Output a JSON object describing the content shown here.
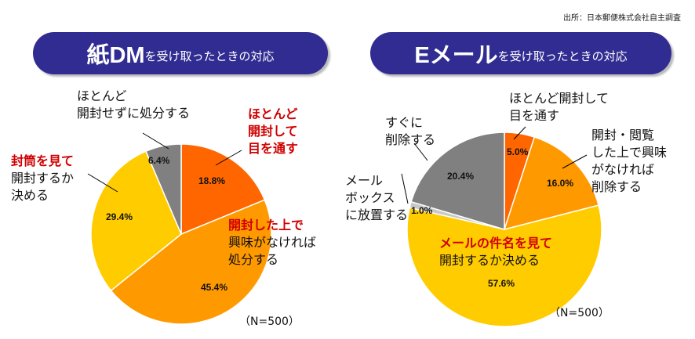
{
  "source": "出所：日本郵便株式会社自主調査",
  "chart_data": [
    {
      "type": "pie",
      "title_big": "紙DM",
      "title_small": "を受け取ったときの対応",
      "n_label": "（N=500）",
      "start": "12 o'clock",
      "direction": "clockwise",
      "slices": [
        {
          "name": "ほとんど開封して目を通す",
          "lines": [
            "ほとんど",
            "開封して",
            "目を通す"
          ],
          "value": 18.8,
          "label": "18.8%",
          "color": "#ff6600"
        },
        {
          "name": "開封した上で興味がなければ処分する",
          "lines_red": [
            "開封した上で"
          ],
          "lines": [
            "興味がなければ",
            "処分する"
          ],
          "value": 45.4,
          "label": "45.4%",
          "color": "#ff9900"
        },
        {
          "name": "封筒を見て開封するか決める",
          "lines_red": [
            "封筒を見て"
          ],
          "lines": [
            "開封するか",
            "決める"
          ],
          "value": 29.4,
          "label": "29.4%",
          "color": "#ffcc00"
        },
        {
          "name": "ほとんど開封せずに処分する",
          "lines": [
            "ほとんど",
            "開封せずに処分する"
          ],
          "value": 6.4,
          "label": "6.4%",
          "color": "#808080"
        }
      ]
    },
    {
      "type": "pie",
      "title_big": "Eメール",
      "title_small": "を受け取ったときの対応",
      "n_label": "（N=500）",
      "start": "12 o'clock",
      "direction": "clockwise",
      "slices": [
        {
          "name": "ほとんど開封して目を通す",
          "lines": [
            "ほとんど開封して",
            "目を通す"
          ],
          "value": 5.0,
          "label": "5.0%",
          "color": "#ff6600"
        },
        {
          "name": "開封・閲覧した上で興味がなければ削除する",
          "lines": [
            "開封・閲覧",
            "した上で興味",
            "がなければ",
            "削除する"
          ],
          "value": 16.0,
          "label": "16.0%",
          "color": "#ff9900"
        },
        {
          "name": "メールの件名を見て開封するか決める",
          "lines_red": [
            "メールの件名を見て"
          ],
          "lines": [
            "開封するか決める"
          ],
          "value": 57.6,
          "label": "57.6%",
          "color": "#ffcc00"
        },
        {
          "name": "メールボックスに放置する",
          "lines": [
            "メール",
            "ボックス",
            "に放置する"
          ],
          "value": 1.0,
          "label": "1.0%",
          "color": "#c8c8c8"
        },
        {
          "name": "すぐに削除する",
          "lines": [
            "すぐに",
            "削除する"
          ],
          "value": 20.4,
          "label": "20.4%",
          "color": "#808080"
        }
      ]
    }
  ]
}
